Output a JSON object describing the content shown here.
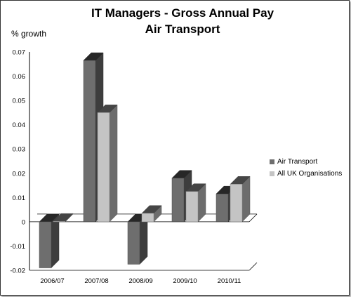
{
  "chart_data": {
    "type": "bar",
    "title": "IT Managers - Gross Annual Pay",
    "subtitle": "Air Transport",
    "ylabel": "% growth",
    "xlabel": "",
    "categories": [
      "2006/07",
      "2007/08",
      "2008/09",
      "2009/10",
      "2010/11"
    ],
    "series": [
      {
        "name": "Air Transport",
        "values": [
          -0.019,
          0.0665,
          -0.0175,
          0.018,
          0.0115
        ],
        "color": "#6e6e6e"
      },
      {
        "name": "All UK Organisations",
        "values": [
          0.0002,
          0.045,
          0.0035,
          0.0125,
          0.0155
        ],
        "color": "#c4c4c4"
      }
    ],
    "ylim": [
      -0.02,
      0.07
    ],
    "yticks": [
      "-0.02",
      "-0.01",
      "0",
      "0.01",
      "0.02",
      "0.03",
      "0.04",
      "0.05",
      "0.06",
      "0.07"
    ],
    "grid": false,
    "legend_position": "right"
  }
}
